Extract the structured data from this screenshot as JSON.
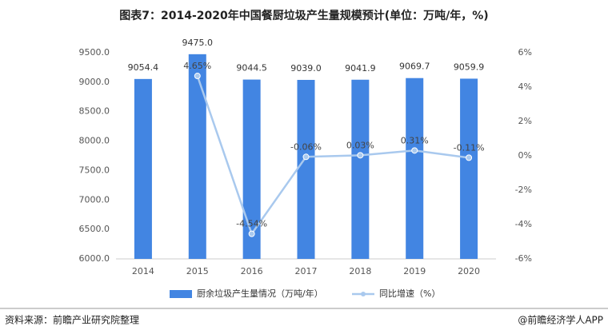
{
  "chart_data": {
    "type": "bar-line",
    "title": "图表7：2014-2020年中国餐厨垃圾产生量规模预计(单位：万吨/年，%)",
    "categories": [
      "2014",
      "2015",
      "2016",
      "2017",
      "2018",
      "2019",
      "2020"
    ],
    "series": [
      {
        "name": "厨余垃圾产生量情况（万吨/年）",
        "type": "bar",
        "color": "#4285e2",
        "values": [
          9054.4,
          9475.0,
          9044.5,
          9039.0,
          9041.9,
          9069.7,
          9059.9
        ],
        "value_labels": [
          "9054.4",
          "9475.0",
          "9044.5",
          "9039.0",
          "9041.9",
          "9069.7",
          "9059.9"
        ]
      },
      {
        "name": "同比增速（%）",
        "type": "line",
        "axis": "y2",
        "color": "#a9c9ee",
        "values": [
          null,
          4.65,
          -4.54,
          -0.06,
          0.03,
          0.31,
          -0.11
        ],
        "value_labels": [
          null,
          "4.65%",
          "-4.54%",
          "-0.06%",
          "0.03%",
          "0.31%",
          "-0.11%"
        ]
      }
    ],
    "ylim": [
      6000,
      9500
    ],
    "yticks": [
      {
        "value": 6000,
        "label": "6000.0"
      },
      {
        "value": 6500,
        "label": "6500.0"
      },
      {
        "value": 7000,
        "label": "7000.0"
      },
      {
        "value": 7500,
        "label": "7500.0"
      },
      {
        "value": 8000,
        "label": "8000.0"
      },
      {
        "value": 8500,
        "label": "8500.0"
      },
      {
        "value": 9000,
        "label": "9000.0"
      },
      {
        "value": 9500,
        "label": "9500.0"
      }
    ],
    "y2lim": [
      -6,
      6
    ],
    "y2ticks": [
      {
        "value": -6,
        "label": "-6%"
      },
      {
        "value": -4,
        "label": "-4%"
      },
      {
        "value": -2,
        "label": "-2%"
      },
      {
        "value": 0,
        "label": "0%"
      },
      {
        "value": 2,
        "label": "2%"
      },
      {
        "value": 4,
        "label": "4%"
      },
      {
        "value": 6,
        "label": "6%"
      }
    ],
    "grid": false,
    "source": "资料来源：前瞻产业研究院整理",
    "credit": "@前瞻经济学人APP"
  }
}
